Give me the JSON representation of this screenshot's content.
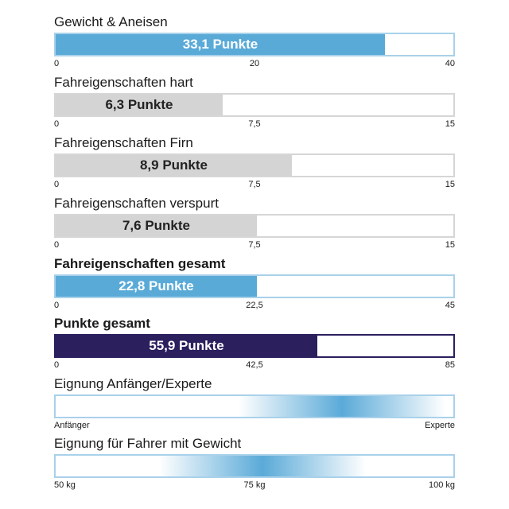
{
  "chart_data": {
    "type": "bar",
    "orientation": "horizontal",
    "bars": [
      {
        "title": "Gewicht & Aneisen",
        "value": 33.1,
        "max": 40,
        "value_label": "33,1 Punkte",
        "ticks": [
          "0",
          "20",
          "40"
        ],
        "color": "#5aaad8",
        "border": "#a9d1ea",
        "label_color": "light",
        "bold_title": false
      },
      {
        "title": "Fahreigenschaften hart",
        "value": 6.3,
        "max": 15,
        "value_label": "6,3 Punkte",
        "ticks": [
          "0",
          "7,5",
          "15"
        ],
        "color": "#d4d4d4",
        "border": "#d6d6d6",
        "label_color": "dark",
        "bold_title": false
      },
      {
        "title": "Fahreigenschaften Firn",
        "value": 8.9,
        "max": 15,
        "value_label": "8,9 Punkte",
        "ticks": [
          "0",
          "7,5",
          "15"
        ],
        "color": "#d4d4d4",
        "border": "#d6d6d6",
        "label_color": "dark",
        "bold_title": false
      },
      {
        "title": "Fahreigenschaften verspurt",
        "value": 7.6,
        "max": 15,
        "value_label": "7,6 Punkte",
        "ticks": [
          "0",
          "7,5",
          "15"
        ],
        "color": "#d4d4d4",
        "border": "#d6d6d6",
        "label_color": "dark",
        "bold_title": false
      },
      {
        "title": "Fahreigenschaften gesamt",
        "value": 22.8,
        "max": 45,
        "value_label": "22,8 Punkte",
        "ticks": [
          "0",
          "22,5",
          "45"
        ],
        "color": "#5aaad8",
        "border": "#a9d1ea",
        "label_color": "light",
        "bold_title": true
      },
      {
        "title": "Punkte gesamt",
        "value": 55.9,
        "max": 85,
        "value_label": "55,9 Punkte",
        "ticks": [
          "0",
          "42,5",
          "85"
        ],
        "color": "#2b1f5e",
        "border": "#2b1f5e",
        "label_color": "light",
        "bold_title": true
      }
    ],
    "scales": [
      {
        "title": "Eignung Anfänger/Experte",
        "peak": 0.72,
        "ticks": [
          "Anfänger",
          "",
          "Experte"
        ],
        "color": "#5aaad8"
      },
      {
        "title": "Eignung für Fahrer mit Gewicht",
        "peak": 0.52,
        "ticks": [
          "50 kg",
          "75 kg",
          "100 kg"
        ],
        "color": "#5aaad8"
      }
    ]
  }
}
